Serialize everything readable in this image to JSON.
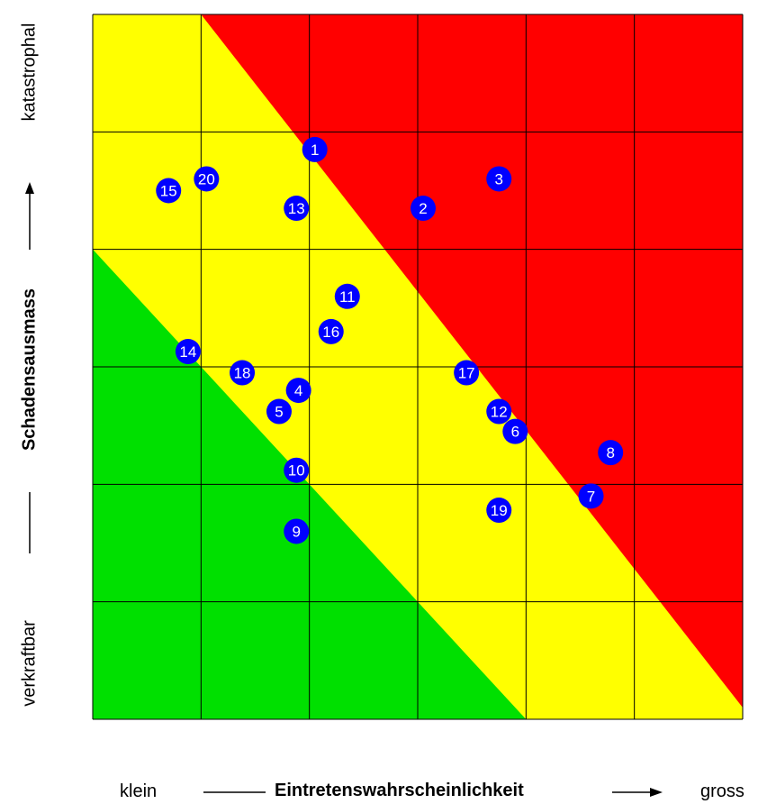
{
  "chart_data": {
    "type": "scatter",
    "title": "",
    "xlabel": "Eintretenswahrscheinlichkeit",
    "ylabel": "Schadensausmass",
    "x_low_label": "klein",
    "x_high_label": "gross",
    "y_low_label": "verkraftbar",
    "y_high_label": "katastrophal",
    "xlim": [
      0,
      6
    ],
    "ylim": [
      0,
      6
    ],
    "grid": true,
    "zone_colors": {
      "red": "#ff0000",
      "yellow": "#ffff00",
      "green": "#00e000"
    },
    "marker_color": "#0000ff",
    "marker_text_color": "#ffffff",
    "points": [
      {
        "label": "1",
        "x": 2.05,
        "y": 4.85
      },
      {
        "label": "2",
        "x": 3.05,
        "y": 4.35
      },
      {
        "label": "3",
        "x": 3.75,
        "y": 4.6
      },
      {
        "label": "4",
        "x": 1.9,
        "y": 2.8
      },
      {
        "label": "5",
        "x": 1.72,
        "y": 2.62
      },
      {
        "label": "6",
        "x": 3.9,
        "y": 2.45
      },
      {
        "label": "7",
        "x": 4.6,
        "y": 1.9
      },
      {
        "label": "8",
        "x": 4.78,
        "y": 2.27
      },
      {
        "label": "9",
        "x": 1.88,
        "y": 1.6
      },
      {
        "label": "10",
        "x": 1.88,
        "y": 2.12
      },
      {
        "label": "11",
        "x": 2.35,
        "y": 3.6
      },
      {
        "label": "12",
        "x": 3.75,
        "y": 2.62
      },
      {
        "label": "13",
        "x": 1.88,
        "y": 4.35
      },
      {
        "label": "14",
        "x": 0.88,
        "y": 3.13
      },
      {
        "label": "15",
        "x": 0.7,
        "y": 4.5
      },
      {
        "label": "16",
        "x": 2.2,
        "y": 3.3
      },
      {
        "label": "17",
        "x": 3.45,
        "y": 2.95
      },
      {
        "label": "18",
        "x": 1.38,
        "y": 2.95
      },
      {
        "label": "19",
        "x": 3.75,
        "y": 1.78
      },
      {
        "label": "20",
        "x": 1.05,
        "y": 4.6
      }
    ]
  }
}
